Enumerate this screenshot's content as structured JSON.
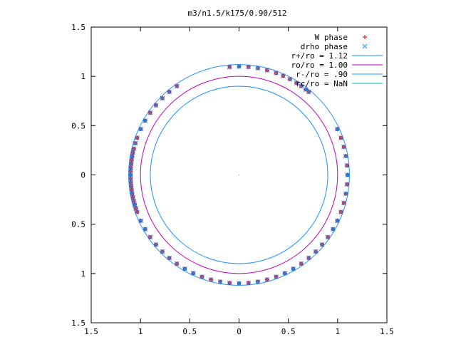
{
  "chart_data": {
    "type": "scatter",
    "title": "m3/n1.5/k175/0.90/512",
    "xlabel": "",
    "ylabel": "",
    "xlim": [
      -1.5,
      1.5
    ],
    "ylim": [
      -1.5,
      1.5
    ],
    "x_ticks": [
      -1.5,
      -1,
      -0.5,
      0,
      0.5,
      1,
      1.5
    ],
    "y_ticks": [
      -1.5,
      -1,
      -0.5,
      0,
      0.5,
      1,
      1.5
    ],
    "x_tick_labels": [
      "1.5",
      "1",
      "0.5",
      "0",
      "0.5",
      "1",
      "1.5"
    ],
    "y_tick_labels": [
      "1.5",
      "1",
      "0.5",
      "0",
      "0.5",
      "1",
      "1.5"
    ],
    "grid": false,
    "legend_position": "top-right",
    "colors": {
      "w_phase": "#ff0000",
      "drho_phase": "#1e90ff",
      "r_plus": "#1e90ff",
      "ro": "#c000c0",
      "r_minus": "#1e90ff",
      "rc": "#00c0c0",
      "overlap": "#a0506a",
      "axis": "#000000"
    },
    "series": [
      {
        "name": "W phase",
        "kind": "points",
        "marker": "plus",
        "radius": 1.1,
        "angles_deg": [
          95,
          90,
          85,
          80,
          75,
          70,
          66,
          62,
          58,
          55,
          52,
          50,
          125,
          130,
          135,
          140,
          145,
          150,
          155,
          160,
          163,
          166,
          168,
          170,
          172,
          174,
          176,
          178,
          180,
          182,
          184,
          186,
          188,
          190,
          192,
          194,
          196,
          198,
          200,
          205,
          210,
          215,
          220,
          225,
          230,
          235,
          240,
          245,
          250,
          255,
          260,
          265,
          270,
          275,
          280,
          285,
          290,
          295,
          300,
          305,
          310,
          315,
          320,
          325,
          330,
          335,
          340,
          345,
          350,
          355,
          0,
          5,
          10,
          15,
          20,
          25
        ]
      },
      {
        "name": "drho phase",
        "kind": "points",
        "marker": "cross",
        "radius": 1.1,
        "angles_deg": [
          95,
          90,
          85,
          80,
          75,
          70,
          66,
          62,
          58,
          55,
          52,
          50,
          125,
          130,
          135,
          140,
          145,
          150,
          155,
          160,
          163,
          166,
          168,
          170,
          172,
          174,
          176,
          178,
          180,
          182,
          184,
          186,
          188,
          190,
          192,
          194,
          196,
          198,
          200,
          205,
          210,
          215,
          220,
          225,
          230,
          235,
          240,
          245,
          250,
          255,
          260,
          265,
          270,
          275,
          280,
          285,
          290,
          295,
          300,
          305,
          310,
          315,
          320,
          325,
          330,
          335,
          340,
          345,
          350,
          355,
          0,
          5,
          10,
          15,
          20,
          25
        ]
      },
      {
        "name": "r+/ro = 1.12",
        "kind": "circle",
        "r": 1.12
      },
      {
        "name": "ro/ro = 1.00",
        "kind": "circle",
        "r": 1.0
      },
      {
        "name": "r-/ro = .90",
        "kind": "circle",
        "r": 0.9
      },
      {
        "name": "rc/ro = NaN",
        "kind": "circle",
        "r": null
      }
    ]
  }
}
